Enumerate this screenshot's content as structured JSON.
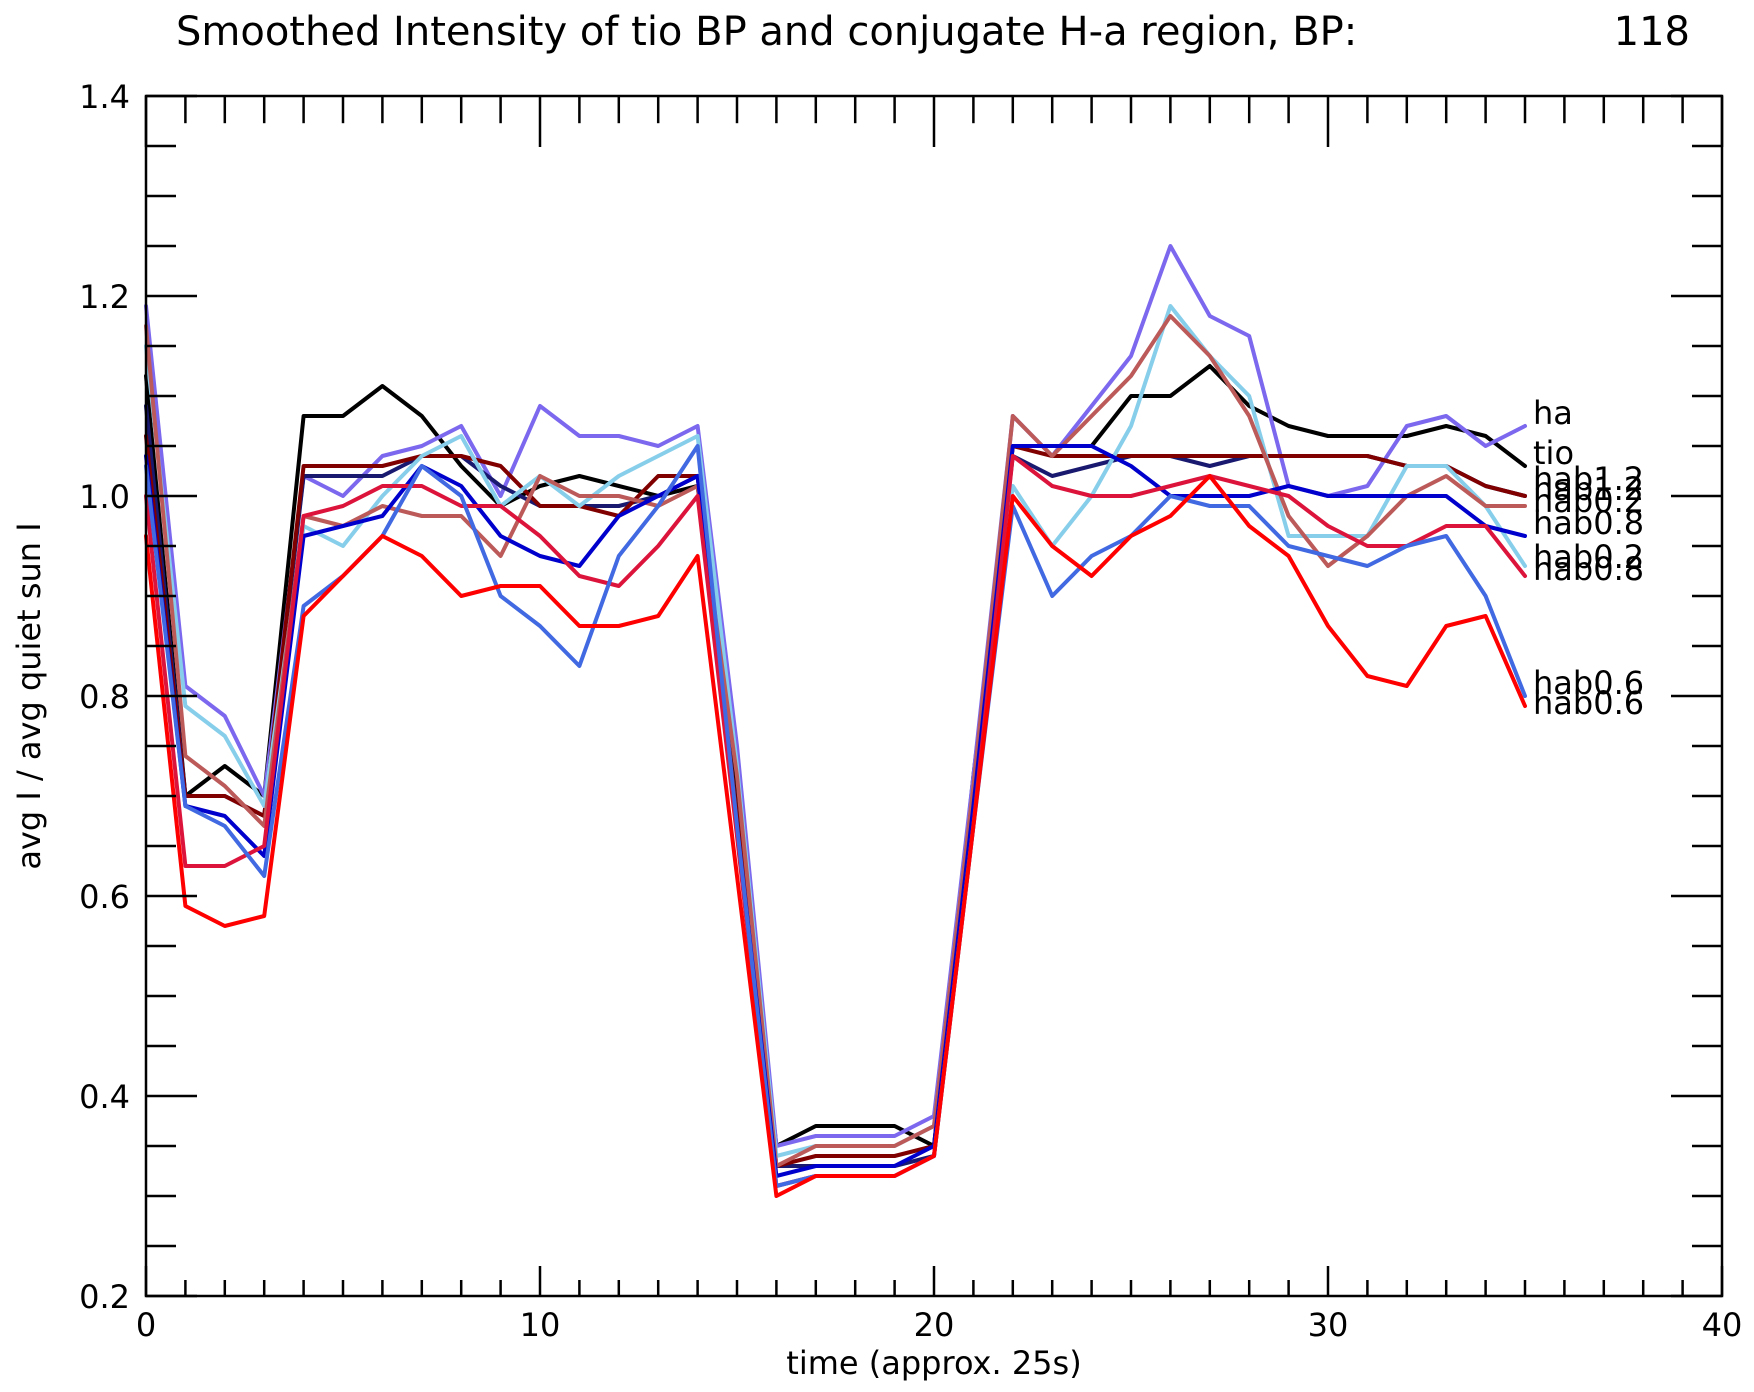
{
  "chart_data": {
    "type": "line",
    "title": "Smoothed Intensity of tio BP and conjugate H-a region, BP:",
    "title_value": "118",
    "xlabel": "time (approx. 25s)",
    "ylabel": "avg I / avg quiet sun I",
    "xlim": [
      0,
      40
    ],
    "ylim": [
      0.2,
      1.4
    ],
    "x_ticks": [
      0,
      10,
      20,
      30,
      40
    ],
    "y_ticks": [
      0.2,
      0.4,
      0.6,
      0.8,
      1.0,
      1.2,
      1.4
    ],
    "x_tick_labels": [
      "0",
      "10",
      "20",
      "30",
      "40"
    ],
    "y_tick_labels": [
      "0.2",
      "0.4",
      "0.6",
      "0.8",
      "1.0",
      "1.2",
      "1.4"
    ],
    "x_minor_step": 1,
    "y_minor_step": 0.05,
    "grid": false,
    "x": [
      0,
      1,
      2,
      3,
      4,
      5,
      6,
      7,
      8,
      9,
      10,
      11,
      12,
      13,
      14,
      15,
      16,
      17,
      18,
      19,
      20,
      21,
      22,
      23,
      24,
      25,
      26,
      27,
      28,
      29,
      30,
      31,
      32,
      33,
      34,
      35
    ],
    "series": [
      {
        "name": "tio",
        "color": "#000000",
        "values": [
          1.12,
          0.7,
          0.73,
          0.7,
          1.08,
          1.08,
          1.11,
          1.08,
          1.03,
          0.99,
          1.01,
          1.02,
          1.01,
          1.0,
          1.01,
          0.7,
          0.35,
          0.37,
          0.37,
          0.37,
          0.35,
          0.72,
          1.05,
          1.05,
          1.05,
          1.1,
          1.1,
          1.13,
          1.09,
          1.07,
          1.06,
          1.06,
          1.06,
          1.07,
          1.06,
          1.03
        ]
      },
      {
        "name": "ha",
        "color": "#7b68ee",
        "values": [
          1.19,
          0.81,
          0.78,
          0.7,
          1.02,
          1.0,
          1.04,
          1.05,
          1.07,
          1.0,
          1.09,
          1.06,
          1.06,
          1.05,
          1.07,
          0.75,
          0.35,
          0.36,
          0.36,
          0.36,
          0.38,
          0.72,
          1.08,
          1.04,
          1.09,
          1.14,
          1.25,
          1.18,
          1.16,
          1.01,
          1.0,
          1.01,
          1.07,
          1.08,
          1.05,
          1.07
        ]
      },
      {
        "name": "hab1.2",
        "color": "#191970",
        "values": [
          1.09,
          0.7,
          0.7,
          0.68,
          1.02,
          1.02,
          1.02,
          1.04,
          1.04,
          1.01,
          0.99,
          0.99,
          0.99,
          1.0,
          1.02,
          0.68,
          0.33,
          0.33,
          0.33,
          0.33,
          0.34,
          0.7,
          1.04,
          1.02,
          1.03,
          1.04,
          1.04,
          1.03,
          1.04,
          1.04,
          1.04,
          1.04,
          1.03,
          1.03,
          1.01,
          1.0
        ]
      },
      {
        "name": "hab1.2",
        "color": "#800000",
        "values": [
          1.06,
          0.7,
          0.7,
          0.68,
          1.03,
          1.03,
          1.03,
          1.04,
          1.04,
          1.03,
          0.99,
          0.99,
          0.98,
          1.02,
          1.02,
          0.68,
          0.33,
          0.34,
          0.34,
          0.34,
          0.35,
          0.7,
          1.05,
          1.04,
          1.04,
          1.04,
          1.04,
          1.04,
          1.04,
          1.04,
          1.04,
          1.04,
          1.03,
          1.03,
          1.01,
          1.0
        ]
      },
      {
        "name": "hab0.2",
        "color": "#87ceeb",
        "values": [
          1.15,
          0.79,
          0.76,
          0.69,
          0.97,
          0.95,
          1.0,
          1.04,
          1.06,
          0.99,
          1.02,
          0.99,
          1.02,
          1.04,
          1.06,
          0.73,
          0.34,
          0.35,
          0.35,
          0.35,
          0.37,
          0.71,
          1.01,
          0.95,
          1.0,
          1.07,
          1.19,
          1.14,
          1.1,
          0.96,
          0.96,
          0.96,
          1.03,
          1.03,
          0.99,
          0.93
        ]
      },
      {
        "name": "hab0.2",
        "color": "#bc5a5a",
        "values": [
          1.17,
          0.74,
          0.71,
          0.67,
          0.98,
          0.97,
          0.99,
          0.98,
          0.98,
          0.94,
          1.02,
          1.0,
          1.0,
          0.99,
          1.01,
          0.72,
          0.33,
          0.35,
          0.35,
          0.35,
          0.37,
          0.71,
          1.08,
          1.04,
          1.08,
          1.12,
          1.18,
          1.14,
          1.08,
          0.98,
          0.93,
          0.96,
          1.0,
          1.02,
          0.99,
          0.99
        ]
      },
      {
        "name": "hab0.8",
        "color": "#0000cd",
        "values": [
          1.04,
          0.69,
          0.68,
          0.64,
          0.96,
          0.97,
          0.98,
          1.03,
          1.01,
          0.96,
          0.94,
          0.93,
          0.98,
          1.0,
          1.02,
          0.67,
          0.32,
          0.33,
          0.33,
          0.33,
          0.35,
          0.69,
          1.05,
          1.05,
          1.05,
          1.03,
          1.0,
          1.0,
          1.0,
          1.01,
          1.0,
          1.0,
          1.0,
          1.0,
          0.97,
          0.96
        ]
      },
      {
        "name": "hab0.8",
        "color": "#dc143c",
        "values": [
          1.0,
          0.63,
          0.63,
          0.65,
          0.98,
          0.99,
          1.01,
          1.01,
          0.99,
          0.99,
          0.96,
          0.92,
          0.91,
          0.95,
          1.0,
          0.66,
          0.31,
          0.32,
          0.32,
          0.32,
          0.34,
          0.67,
          1.04,
          1.01,
          1.0,
          1.0,
          1.01,
          1.02,
          1.01,
          1.0,
          0.97,
          0.95,
          0.95,
          0.97,
          0.97,
          0.92
        ]
      },
      {
        "name": "hab0.6",
        "color": "#4169e1",
        "values": [
          1.03,
          0.69,
          0.67,
          0.62,
          0.89,
          0.92,
          0.96,
          1.03,
          1.0,
          0.9,
          0.87,
          0.83,
          0.94,
          0.99,
          1.05,
          0.67,
          0.31,
          0.32,
          0.32,
          0.32,
          0.34,
          0.67,
          0.99,
          0.9,
          0.94,
          0.96,
          1.0,
          0.99,
          0.99,
          0.95,
          0.94,
          0.93,
          0.95,
          0.96,
          0.9,
          0.8
        ]
      },
      {
        "name": "hab0.6",
        "color": "#ff0000",
        "values": [
          0.96,
          0.59,
          0.57,
          0.58,
          0.88,
          0.92,
          0.96,
          0.94,
          0.9,
          0.91,
          0.91,
          0.87,
          0.87,
          0.88,
          0.94,
          0.62,
          0.3,
          0.32,
          0.32,
          0.32,
          0.34,
          0.67,
          1.0,
          0.95,
          0.92,
          0.96,
          0.98,
          1.02,
          0.97,
          0.94,
          0.87,
          0.82,
          0.81,
          0.87,
          0.88,
          0.79
        ]
      }
    ],
    "series_labels": [
      "ha",
      "tio",
      "hab1.2",
      "hab1.2",
      "hab0.8",
      "hab0.2",
      "hab0.2",
      "hab0.8",
      "hab0.6",
      "hab0.6"
    ]
  }
}
